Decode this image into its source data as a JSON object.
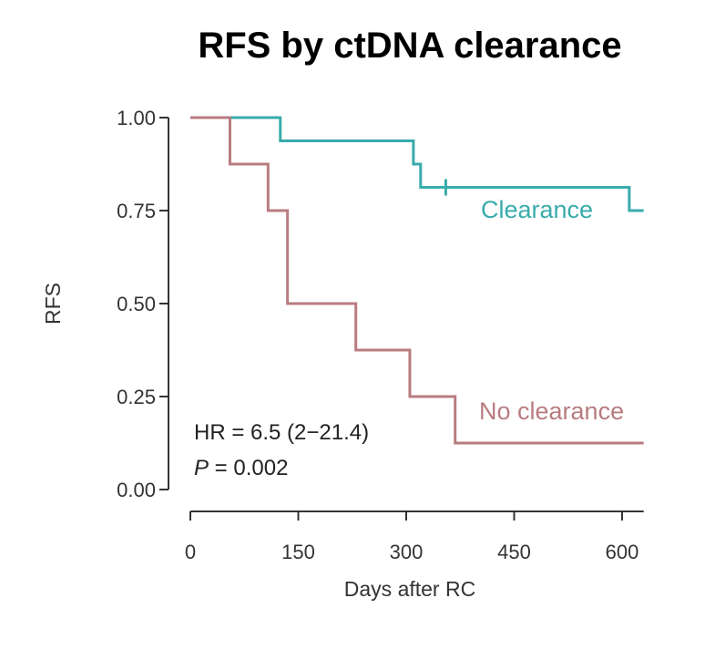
{
  "chart_data": {
    "type": "line",
    "subtype": "kaplan-meier step curve",
    "title": "RFS by ctDNA clearance",
    "xlabel": "Days after RC",
    "ylabel": "RFS",
    "xlim": [
      0,
      630
    ],
    "ylim": [
      0,
      1
    ],
    "xticks": [
      0,
      150,
      300,
      450,
      600
    ],
    "xtick_labels": [
      "0",
      "150",
      "300",
      "450",
      "600"
    ],
    "yticks": [
      0,
      0.25,
      0.5,
      0.75,
      1
    ],
    "ytick_labels": [
      "0.00",
      "0.25",
      "0.50",
      "0.75",
      "1.00"
    ],
    "grid": false,
    "series": [
      {
        "name": "Clearance",
        "color": "#3aabab",
        "x": [
          0,
          125,
          310,
          320,
          610,
          630
        ],
        "y": [
          1.0,
          0.9375,
          0.875,
          0.8125,
          0.75,
          0.75
        ],
        "censored": [
          {
            "x": 355,
            "y": 0.8125
          }
        ]
      },
      {
        "name": "No clearance",
        "color": "#b87c80",
        "x": [
          0,
          55,
          108,
          135,
          230,
          305,
          368,
          630
        ],
        "y": [
          1.0,
          0.875,
          0.75,
          0.5,
          0.375,
          0.25,
          0.125,
          0.125
        ],
        "censored": []
      }
    ],
    "annotations": {
      "hr_text": "HR = 6.5 (2−21.4)",
      "p_symbol": "P",
      "p_value_text": " = 0.002"
    }
  }
}
